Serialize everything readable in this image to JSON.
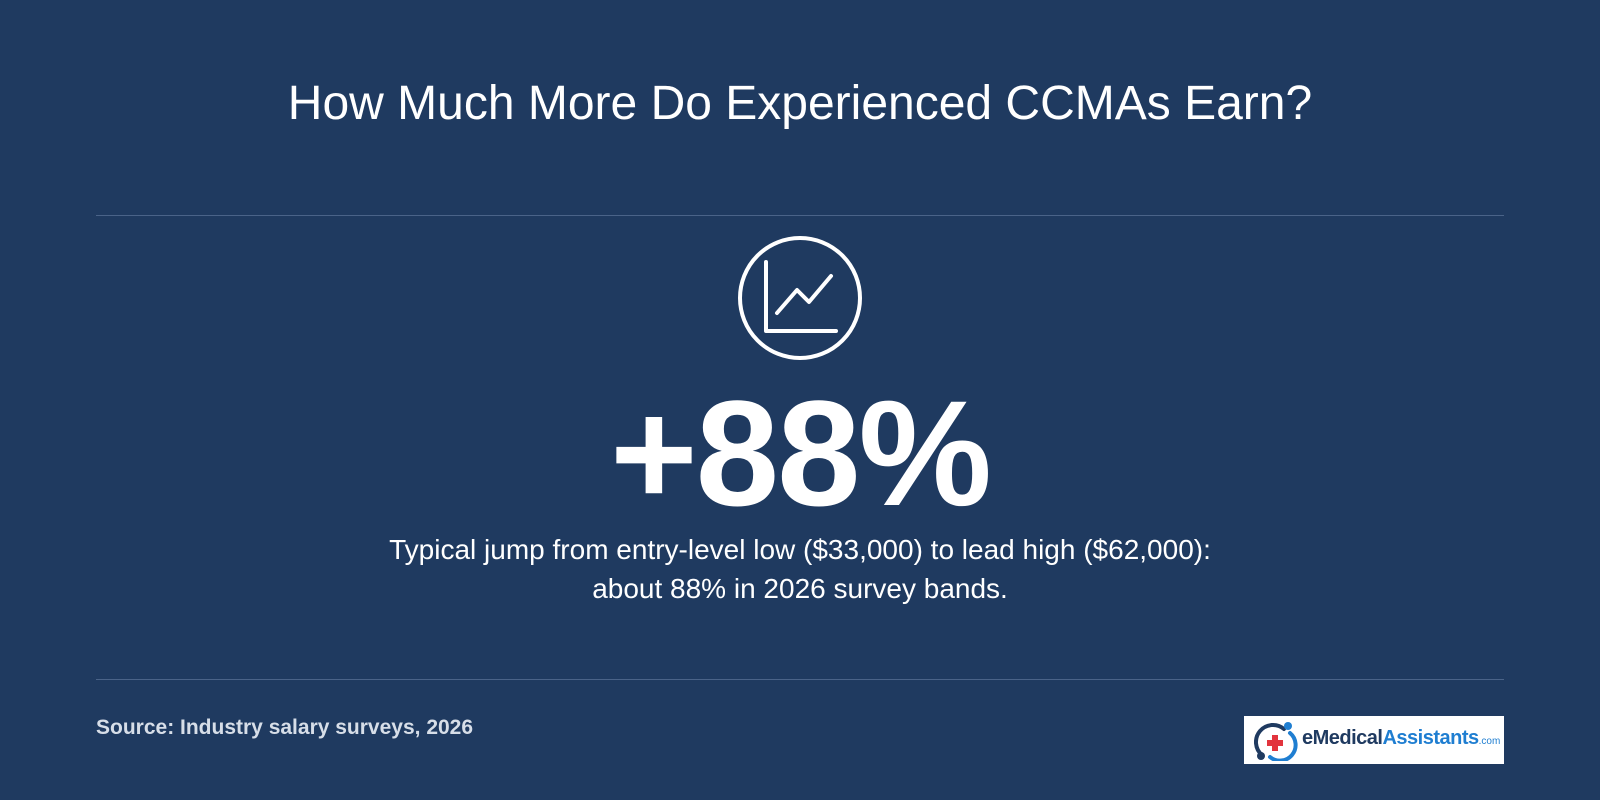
{
  "title": "How Much More Do Experienced CCMAs Earn?",
  "icon": "line-chart-icon",
  "stat": "+88%",
  "description": {
    "line1": "Typical jump from entry-level low ($33,000) to lead high ($62,000):",
    "line2": "about 88% in 2026 survey bands."
  },
  "source": "Source: Industry salary surveys, 2026",
  "logo": {
    "part1": "e",
    "part2": "Medical",
    "part3": "Assistants",
    "part4": ".com"
  },
  "colors": {
    "background": "#1f3a60",
    "text": "#ffffff",
    "divider": "#4a6388",
    "logo_dark": "#1f3a60",
    "logo_blue": "#1f7ed1",
    "logo_red": "#e2343d"
  }
}
